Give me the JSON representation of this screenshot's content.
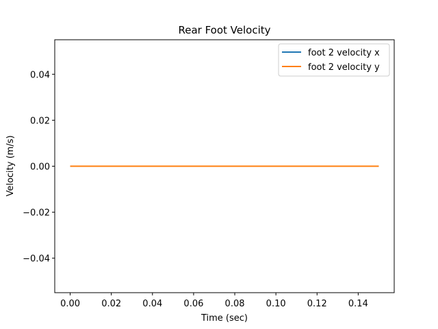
{
  "chart_data": {
    "type": "line",
    "title": "Rear Foot Velocity",
    "xlabel": "Time (sec)",
    "ylabel": "Velocity (m/s)",
    "xlim": [
      -0.0075,
      0.1575
    ],
    "ylim": [
      -0.055,
      0.055
    ],
    "x_ticks": [
      0.0,
      0.02,
      0.04,
      0.06,
      0.08,
      0.1,
      0.12,
      0.14
    ],
    "x_tick_labels": [
      "0.00",
      "0.02",
      "0.04",
      "0.06",
      "0.08",
      "0.10",
      "0.12",
      "0.14"
    ],
    "y_ticks": [
      -0.04,
      -0.02,
      0.0,
      0.02,
      0.04
    ],
    "y_tick_labels": [
      "−0.04",
      "−0.02",
      "0.00",
      "0.02",
      "0.04"
    ],
    "grid": false,
    "legend_position": "top-right",
    "series": [
      {
        "name": "foot 2 velocity x",
        "color": "#1f77b4",
        "x": [
          0.0,
          0.15
        ],
        "y": [
          0.0,
          0.0
        ]
      },
      {
        "name": "foot 2 velocity y",
        "color": "#ff7f0e",
        "x": [
          0.0,
          0.15
        ],
        "y": [
          0.0,
          0.0
        ]
      }
    ]
  }
}
